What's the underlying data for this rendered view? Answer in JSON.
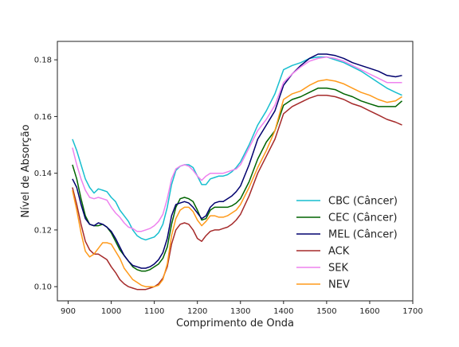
{
  "chart_data": {
    "type": "line",
    "title": "",
    "xlabel": "Comprimento de Onda",
    "ylabel": "Nível de Absorção",
    "xlim": [
      875,
      1700
    ],
    "ylim": [
      0.095,
      0.1865
    ],
    "x_ticks": [
      900,
      1000,
      1100,
      1200,
      1300,
      1400,
      1500,
      1600,
      1700
    ],
    "y_ticks": [
      0.1,
      0.12,
      0.14,
      0.16,
      0.18
    ],
    "x_tick_labels": [
      "900",
      "1000",
      "1100",
      "1200",
      "1300",
      "1400",
      "1500",
      "1600",
      "1700"
    ],
    "y_tick_labels": [
      "0.10",
      "0.12",
      "0.14",
      "0.16",
      "0.18"
    ],
    "grid": false,
    "legend_position": "lower-right",
    "x": [
      910,
      920,
      930,
      940,
      950,
      960,
      970,
      980,
      990,
      1000,
      1010,
      1020,
      1030,
      1040,
      1050,
      1060,
      1070,
      1080,
      1090,
      1100,
      1110,
      1120,
      1130,
      1140,
      1150,
      1160,
      1170,
      1180,
      1190,
      1200,
      1210,
      1220,
      1230,
      1240,
      1250,
      1260,
      1270,
      1280,
      1290,
      1300,
      1320,
      1340,
      1360,
      1380,
      1400,
      1420,
      1440,
      1460,
      1480,
      1500,
      1520,
      1540,
      1560,
      1580,
      1600,
      1620,
      1640,
      1660,
      1675
    ],
    "series": [
      {
        "name": "CBC (Câncer)",
        "color": "#17becf",
        "values": [
          0.152,
          0.148,
          0.143,
          0.138,
          0.135,
          0.133,
          0.1345,
          0.134,
          0.1335,
          0.1315,
          0.13,
          0.127,
          0.125,
          0.123,
          0.12,
          0.118,
          0.117,
          0.1165,
          0.117,
          0.1175,
          0.119,
          0.122,
          0.128,
          0.136,
          0.141,
          0.1425,
          0.143,
          0.143,
          0.142,
          0.139,
          0.136,
          0.136,
          0.138,
          0.1385,
          0.139,
          0.139,
          0.1395,
          0.1405,
          0.142,
          0.144,
          0.15,
          0.157,
          0.162,
          0.168,
          0.1765,
          0.178,
          0.179,
          0.1805,
          0.181,
          0.181,
          0.18,
          0.179,
          0.1775,
          0.176,
          0.174,
          0.172,
          0.17,
          0.1685,
          0.1675
        ]
      },
      {
        "name": "CEC (Câncer)",
        "color": "#006400",
        "values": [
          0.143,
          0.138,
          0.131,
          0.125,
          0.122,
          0.1215,
          0.1215,
          0.122,
          0.121,
          0.119,
          0.116,
          0.113,
          0.111,
          0.109,
          0.107,
          0.106,
          0.1055,
          0.1055,
          0.106,
          0.107,
          0.108,
          0.11,
          0.114,
          0.122,
          0.128,
          0.131,
          0.1315,
          0.131,
          0.13,
          0.127,
          0.1235,
          0.124,
          0.127,
          0.128,
          0.128,
          0.128,
          0.128,
          0.1285,
          0.1295,
          0.131,
          0.137,
          0.145,
          0.151,
          0.155,
          0.164,
          0.166,
          0.167,
          0.1685,
          0.17,
          0.17,
          0.1695,
          0.168,
          0.167,
          0.1655,
          0.1645,
          0.1635,
          0.1635,
          0.1635,
          0.1655
        ]
      },
      {
        "name": "MEL (Câncer)",
        "color": "#00006e",
        "values": [
          0.138,
          0.135,
          0.129,
          0.124,
          0.122,
          0.1215,
          0.1225,
          0.122,
          0.121,
          0.1195,
          0.117,
          0.114,
          0.111,
          0.109,
          0.1075,
          0.107,
          0.1065,
          0.1065,
          0.107,
          0.108,
          0.1095,
          0.112,
          0.117,
          0.125,
          0.129,
          0.1295,
          0.13,
          0.1295,
          0.128,
          0.126,
          0.124,
          0.125,
          0.128,
          0.1295,
          0.13,
          0.13,
          0.131,
          0.132,
          0.1335,
          0.1355,
          0.143,
          0.152,
          0.157,
          0.162,
          0.171,
          0.175,
          0.178,
          0.1805,
          0.182,
          0.182,
          0.1815,
          0.1805,
          0.179,
          0.178,
          0.177,
          0.176,
          0.1745,
          0.174,
          0.1745
        ]
      },
      {
        "name": "ACK",
        "color": "#a52a2a",
        "values": [
          0.135,
          0.129,
          0.122,
          0.116,
          0.113,
          0.1115,
          0.1115,
          0.1105,
          0.1095,
          0.107,
          0.105,
          0.1025,
          0.101,
          0.1,
          0.0995,
          0.099,
          0.099,
          0.099,
          0.0995,
          0.1,
          0.101,
          0.103,
          0.107,
          0.115,
          0.12,
          0.122,
          0.1225,
          0.122,
          0.12,
          0.117,
          0.116,
          0.118,
          0.1195,
          0.12,
          0.12,
          0.1205,
          0.121,
          0.122,
          0.1235,
          0.1255,
          0.132,
          0.14,
          0.146,
          0.152,
          0.161,
          0.1635,
          0.165,
          0.1665,
          0.1675,
          0.1675,
          0.167,
          0.166,
          0.1645,
          0.1635,
          0.162,
          0.1605,
          0.159,
          0.158,
          0.157
        ]
      },
      {
        "name": "SEK",
        "color": "#ee82ee",
        "values": [
          0.149,
          0.143,
          0.138,
          0.134,
          0.1315,
          0.131,
          0.1315,
          0.131,
          0.1305,
          0.128,
          0.126,
          0.1245,
          0.1225,
          0.121,
          0.1205,
          0.1195,
          0.1195,
          0.12,
          0.1205,
          0.1215,
          0.123,
          0.1255,
          0.131,
          0.138,
          0.1415,
          0.1425,
          0.143,
          0.1425,
          0.141,
          0.139,
          0.1375,
          0.139,
          0.14,
          0.14,
          0.14,
          0.14,
          0.1405,
          0.141,
          0.1415,
          0.143,
          0.149,
          0.155,
          0.159,
          0.164,
          0.172,
          0.175,
          0.1775,
          0.1795,
          0.1805,
          0.181,
          0.1805,
          0.1795,
          0.178,
          0.1765,
          0.175,
          0.1735,
          0.172,
          0.172,
          0.172
        ]
      },
      {
        "name": "NEV",
        "color": "#ff9a1a",
        "values": [
          0.134,
          0.127,
          0.119,
          0.1125,
          0.1105,
          0.1115,
          0.1135,
          0.1155,
          0.1155,
          0.115,
          0.1125,
          0.11,
          0.1065,
          0.1045,
          0.1025,
          0.1015,
          0.1005,
          0.1,
          0.1,
          0.1,
          0.1005,
          0.1025,
          0.108,
          0.118,
          0.124,
          0.127,
          0.128,
          0.128,
          0.1265,
          0.1235,
          0.1215,
          0.123,
          0.125,
          0.125,
          0.1245,
          0.1245,
          0.125,
          0.126,
          0.127,
          0.129,
          0.135,
          0.142,
          0.148,
          0.155,
          0.166,
          0.168,
          0.169,
          0.171,
          0.1725,
          0.173,
          0.1725,
          0.1715,
          0.17,
          0.1685,
          0.1675,
          0.166,
          0.165,
          0.1655,
          0.167
        ]
      }
    ]
  }
}
